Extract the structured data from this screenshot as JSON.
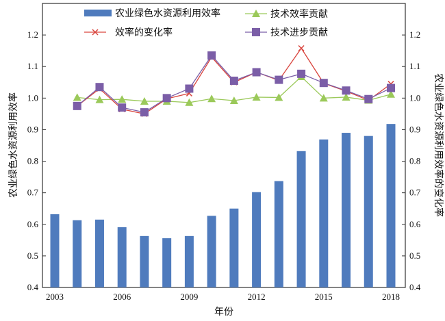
{
  "chart_data": {
    "type": "bar+line",
    "xlabel": "年份",
    "ylabel_left": "农业绿色水资源利用效率",
    "ylabel_right": "农业绿色水资源利用效率的变化率",
    "ylim": [
      0.4,
      1.3
    ],
    "yticks": [
      "0.4",
      "0.5",
      "0.6",
      "0.7",
      "0.8",
      "0.9",
      "1.0",
      "1.1",
      "1.2"
    ],
    "xticks": [
      "2003",
      "2006",
      "2009",
      "2012",
      "2015",
      "2018"
    ],
    "years": [
      2003,
      2004,
      2005,
      2006,
      2007,
      2008,
      2009,
      2010,
      2011,
      2012,
      2013,
      2014,
      2015,
      2016,
      2017,
      2018
    ],
    "bars": {
      "name": "农业绿色水资源利用效率",
      "color": "#4f7bbd",
      "values": [
        0.632,
        0.613,
        0.615,
        0.591,
        0.563,
        0.556,
        0.563,
        0.627,
        0.65,
        0.702,
        0.737,
        0.832,
        0.869,
        0.89,
        0.88,
        0.918
      ]
    },
    "series": [
      {
        "name": "技术效率贡献",
        "color": "#9bc95a",
        "marker": "triangle",
        "values": [
          null,
          1.002,
          0.995,
          0.996,
          0.99,
          0.99,
          0.986,
          0.998,
          0.992,
          1.003,
          1.002,
          1.068,
          1.0,
          1.003,
          0.993,
          1.012
        ]
      },
      {
        "name": "效率的变化率",
        "color": "#d9463f",
        "marker": "x",
        "values": [
          null,
          0.975,
          1.03,
          0.965,
          0.95,
          0.998,
          1.015,
          1.13,
          1.05,
          1.082,
          1.056,
          1.158,
          1.047,
          1.022,
          0.993,
          1.045
        ]
      },
      {
        "name": "技术进步贡献",
        "color": "#7b5ea7",
        "marker": "square",
        "values": [
          null,
          0.975,
          1.035,
          0.97,
          0.955,
          1.0,
          1.03,
          1.135,
          1.055,
          1.082,
          1.058,
          1.077,
          1.048,
          1.024,
          0.997,
          1.032
        ]
      }
    ]
  }
}
